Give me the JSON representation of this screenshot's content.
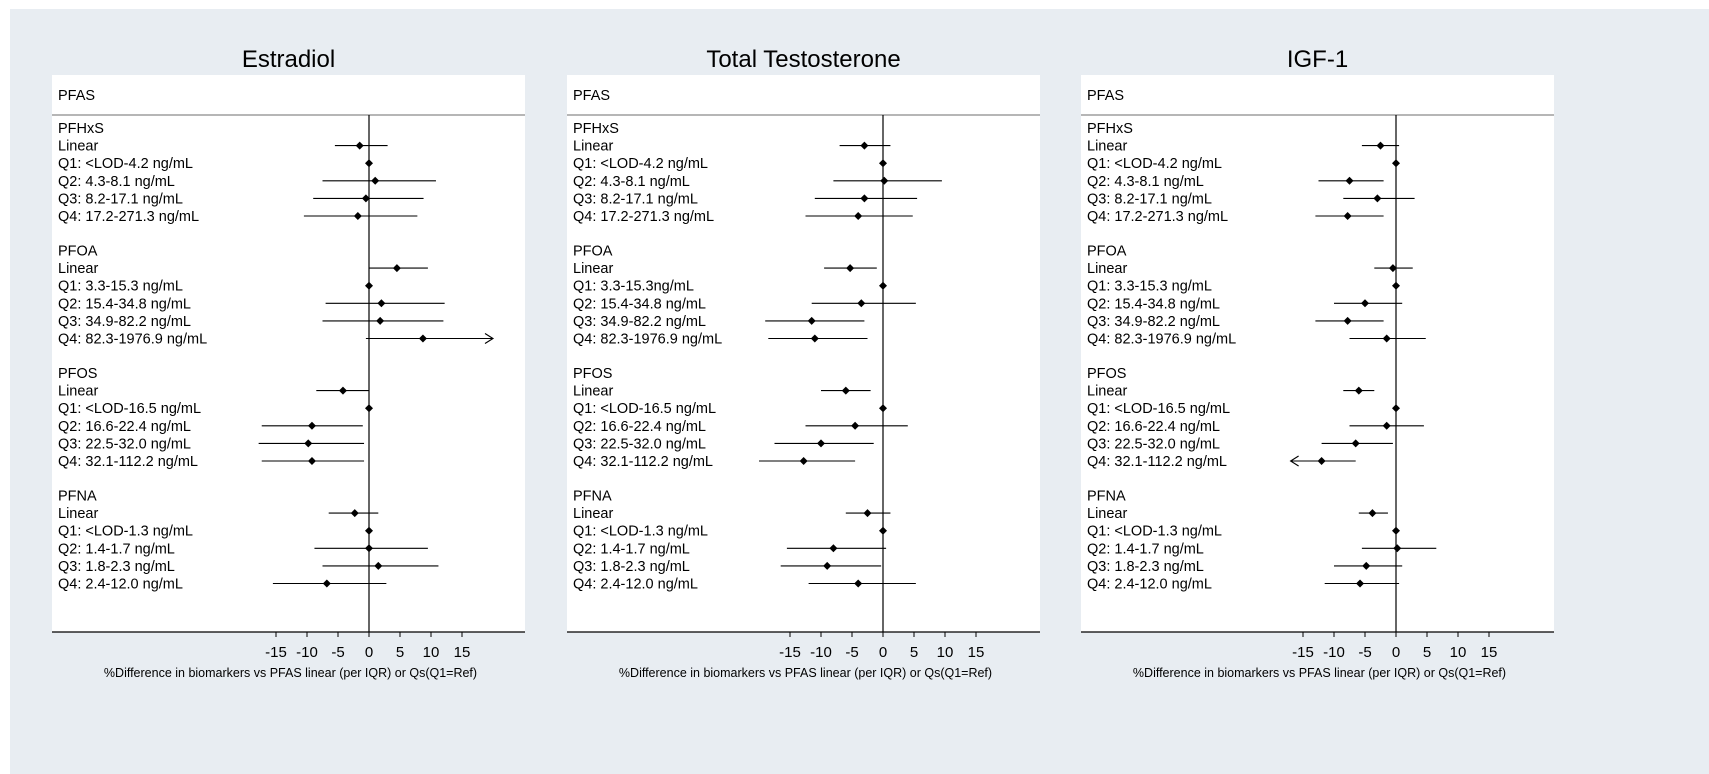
{
  "colors": {
    "figure_bg": "#e8edf2",
    "plot_bg": "#ffffff",
    "ink": "#000000"
  },
  "chart_data": [
    {
      "type": "forest",
      "title": "Estradiol",
      "header": "PFAS",
      "xlabel": "%Difference in biomarkers vs PFAS linear (per IQR) or Qs(Q1=Ref)",
      "xlim": [
        -20,
        20
      ],
      "xticks": [
        -15,
        -10,
        -5,
        0,
        5,
        10,
        15
      ],
      "groups": [
        {
          "name": "PFHxS",
          "rows": [
            {
              "label": "Linear",
              "est": -1.5,
              "lo": -5.5,
              "hi": 3
            },
            {
              "label": "Q1: <LOD-4.2 ng/mL",
              "est": 0,
              "lo": 0,
              "hi": 0
            },
            {
              "label": "Q2: 4.3-8.1 ng/mL",
              "est": 1,
              "lo": -7.5,
              "hi": 10.8
            },
            {
              "label": "Q3: 8.2-17.1 ng/mL",
              "est": -0.5,
              "lo": -9,
              "hi": 8.8
            },
            {
              "label": "Q4: 17.2-271.3 ng/mL",
              "est": -1.8,
              "lo": -10.5,
              "hi": 7.8
            }
          ]
        },
        {
          "name": "PFOA",
          "rows": [
            {
              "label": "Linear",
              "est": 4.5,
              "lo": 0,
              "hi": 9.5
            },
            {
              "label": "Q1: 3.3-15.3 ng/mL",
              "est": 0,
              "lo": 0,
              "hi": 0
            },
            {
              "label": "Q2: 15.4-34.8 ng/mL",
              "est": 2,
              "lo": -7,
              "hi": 12.2
            },
            {
              "label": "Q3: 34.9-82.2 ng/mL",
              "est": 1.8,
              "lo": -7.5,
              "hi": 12
            },
            {
              "label": "Q4: 82.3-1976.9 ng/mL",
              "est": 8.7,
              "lo": -0.5,
              "hi": 20,
              "arrow": "right"
            }
          ]
        },
        {
          "name": "PFOS",
          "rows": [
            {
              "label": "Linear",
              "est": -4.2,
              "lo": -8.5,
              "hi": 0
            },
            {
              "label": "Q1: <LOD-16.5 ng/mL",
              "est": 0,
              "lo": 0,
              "hi": 0
            },
            {
              "label": "Q2: 16.6-22.4 ng/mL",
              "est": -9.2,
              "lo": -17.3,
              "hi": -1
            },
            {
              "label": "Q3: 22.5-32.0 ng/mL",
              "est": -9.8,
              "lo": -17.8,
              "hi": -0.8
            },
            {
              "label": "Q4: 32.1-112.2 ng/mL",
              "est": -9.2,
              "lo": -17.3,
              "hi": -0.8
            }
          ]
        },
        {
          "name": "PFNA",
          "rows": [
            {
              "label": "Linear",
              "est": -2.3,
              "lo": -6.5,
              "hi": 1.5
            },
            {
              "label": "Q1: <LOD-1.3 ng/mL",
              "est": 0,
              "lo": 0,
              "hi": 0
            },
            {
              "label": "Q2: 1.4-1.7 ng/mL",
              "est": 0,
              "lo": -8.8,
              "hi": 9.5
            },
            {
              "label": "Q3: 1.8-2.3 ng/mL",
              "est": 1.5,
              "lo": -7.5,
              "hi": 11.2
            },
            {
              "label": "Q4: 2.4-12.0 ng/mL",
              "est": -6.8,
              "lo": -15.5,
              "hi": 2.8
            }
          ]
        }
      ]
    },
    {
      "type": "forest",
      "title": "Total Testosterone",
      "header": "PFAS",
      "xlabel": "%Difference in biomarkers vs PFAS linear (per IQR) or Qs(Q1=Ref)",
      "xlim": [
        -20,
        20
      ],
      "xticks": [
        -15,
        -10,
        -5,
        0,
        5,
        10,
        15
      ],
      "groups": [
        {
          "name": "PFHxS",
          "rows": [
            {
              "label": "Linear",
              "est": -3,
              "lo": -7,
              "hi": 1.2
            },
            {
              "label": "Q1: <LOD-4.2 ng/mL",
              "est": 0,
              "lo": 0,
              "hi": 0
            },
            {
              "label": "Q2: 4.3-8.1 ng/mL",
              "est": 0.2,
              "lo": -8,
              "hi": 9.5
            },
            {
              "label": "Q3: 8.2-17.1 ng/mL",
              "est": -3,
              "lo": -11,
              "hi": 5.5
            },
            {
              "label": "Q4: 17.2-271.3 ng/mL",
              "est": -4,
              "lo": -12.5,
              "hi": 4.8
            }
          ]
        },
        {
          "name": "PFOA",
          "rows": [
            {
              "label": "Linear",
              "est": -5.3,
              "lo": -9.5,
              "hi": -1
            },
            {
              "label": "Q1: 3.3-15.3ng/mL",
              "est": 0,
              "lo": 0,
              "hi": 0
            },
            {
              "label": "Q2: 15.4-34.8 ng/mL",
              "est": -3.5,
              "lo": -11.5,
              "hi": 5.3
            },
            {
              "label": "Q3: 34.9-82.2 ng/mL",
              "est": -11.5,
              "lo": -19,
              "hi": -3
            },
            {
              "label": "Q4: 82.3-1976.9 ng/mL",
              "est": -11,
              "lo": -18.5,
              "hi": -2.5
            }
          ]
        },
        {
          "name": "PFOS",
          "rows": [
            {
              "label": "Linear",
              "est": -6,
              "lo": -10,
              "hi": -2
            },
            {
              "label": "Q1: <LOD-16.5 ng/mL",
              "est": 0,
              "lo": 0,
              "hi": 0
            },
            {
              "label": "Q2: 16.6-22.4 ng/mL",
              "est": -4.5,
              "lo": -12.5,
              "hi": 4
            },
            {
              "label": "Q3: 22.5-32.0 ng/mL",
              "est": -10,
              "lo": -17.5,
              "hi": -1.5
            },
            {
              "label": "Q4: 32.1-112.2 ng/mL",
              "est": -12.8,
              "lo": -20,
              "hi": -4.5
            }
          ]
        },
        {
          "name": "PFNA",
          "rows": [
            {
              "label": "Linear",
              "est": -2.5,
              "lo": -6,
              "hi": 1.2
            },
            {
              "label": "Q1: <LOD-1.3 ng/mL",
              "est": 0,
              "lo": 0,
              "hi": 0
            },
            {
              "label": "Q2: 1.4-1.7 ng/mL",
              "est": -8,
              "lo": -15.5,
              "hi": 0.5
            },
            {
              "label": "Q3: 1.8-2.3 ng/mL",
              "est": -9,
              "lo": -16.5,
              "hi": -0.3
            },
            {
              "label": "Q4: 2.4-12.0 ng/mL",
              "est": -4,
              "lo": -12,
              "hi": 5.3
            }
          ]
        }
      ]
    },
    {
      "type": "forest",
      "title": "IGF-1",
      "header": "PFAS",
      "xlabel": "%Difference in biomarkers vs PFAS linear (per IQR) or Qs(Q1=Ref)",
      "xlim": [
        -20,
        20
      ],
      "xticks": [
        -15,
        -10,
        -5,
        0,
        5,
        10,
        15
      ],
      "groups": [
        {
          "name": "PFHxS",
          "rows": [
            {
              "label": "Linear",
              "est": -2.5,
              "lo": -5.5,
              "hi": 0.5
            },
            {
              "label": "Q1: <LOD-4.2 ng/mL",
              "est": 0,
              "lo": 0,
              "hi": 0
            },
            {
              "label": "Q2: 4.3-8.1 ng/mL",
              "est": -7.5,
              "lo": -12.5,
              "hi": -2
            },
            {
              "label": "Q3: 8.2-17.1 ng/mL",
              "est": -3,
              "lo": -8.5,
              "hi": 3
            },
            {
              "label": "Q4: 17.2-271.3 ng/mL",
              "est": -7.8,
              "lo": -13,
              "hi": -2
            }
          ]
        },
        {
          "name": "PFOA",
          "rows": [
            {
              "label": "Linear",
              "est": -0.5,
              "lo": -3.5,
              "hi": 2.7
            },
            {
              "label": "Q1: 3.3-15.3 ng/mL",
              "est": 0,
              "lo": 0,
              "hi": 0
            },
            {
              "label": "Q2: 15.4-34.8 ng/mL",
              "est": -5,
              "lo": -10,
              "hi": 1
            },
            {
              "label": "Q3: 34.9-82.2 ng/mL",
              "est": -7.8,
              "lo": -13,
              "hi": -2
            },
            {
              "label": "Q4: 82.3-1976.9 ng/mL",
              "est": -1.5,
              "lo": -7.5,
              "hi": 4.8
            }
          ]
        },
        {
          "name": "PFOS",
          "rows": [
            {
              "label": "Linear",
              "est": -6,
              "lo": -8.5,
              "hi": -3.5
            },
            {
              "label": "Q1: <LOD-16.5 ng/mL",
              "est": 0,
              "lo": 0,
              "hi": 0
            },
            {
              "label": "Q2: 16.6-22.4 ng/mL",
              "est": -1.5,
              "lo": -7.5,
              "hi": 4.5
            },
            {
              "label": "Q3: 22.5-32.0 ng/mL",
              "est": -6.5,
              "lo": -12,
              "hi": -0.5
            },
            {
              "label": "Q4: 32.1-112.2 ng/mL",
              "est": -12,
              "lo": -17,
              "hi": -6.5,
              "arrow": "left"
            }
          ]
        },
        {
          "name": "PFNA",
          "rows": [
            {
              "label": "Linear",
              "est": -3.8,
              "lo": -6,
              "hi": -1.3
            },
            {
              "label": "Q1: <LOD-1.3 ng/mL",
              "est": 0,
              "lo": 0,
              "hi": 0
            },
            {
              "label": "Q2: 1.4-1.7 ng/mL",
              "est": 0.2,
              "lo": -5.5,
              "hi": 6.5
            },
            {
              "label": "Q3: 1.8-2.3 ng/mL",
              "est": -4.8,
              "lo": -10,
              "hi": 1
            },
            {
              "label": "Q4: 2.4-12.0 ng/mL",
              "est": -5.8,
              "lo": -11.5,
              "hi": 0.5
            }
          ]
        }
      ]
    }
  ]
}
